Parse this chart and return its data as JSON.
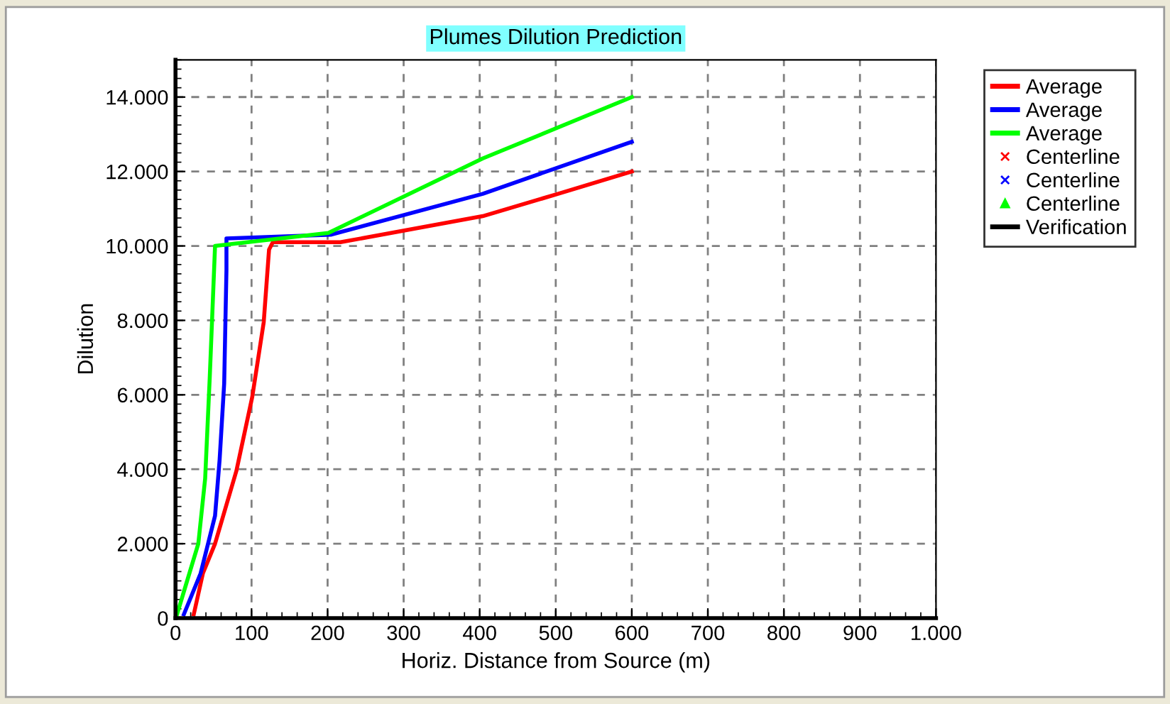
{
  "chart_data": {
    "type": "line",
    "title": "Plumes Dilution Prediction",
    "xlabel": "Horiz. Distance from Source (m)",
    "ylabel": "Dilution",
    "xlim": [
      0,
      1000
    ],
    "ylim": [
      0,
      15000
    ],
    "xticks": [
      0,
      100,
      200,
      300,
      400,
      500,
      600,
      700,
      800,
      900,
      {
        "value": 1000,
        "label": "1.000"
      }
    ],
    "yticks": [
      0,
      {
        "value": 2000,
        "label": "2.000"
      },
      {
        "value": 4000,
        "label": "4.000"
      },
      {
        "value": 6000,
        "label": "6.000"
      },
      {
        "value": 8000,
        "label": "8.000"
      },
      {
        "value": 10000,
        "label": "10.000"
      },
      {
        "value": 12000,
        "label": "12.000"
      },
      {
        "value": 14000,
        "label": "14.000"
      }
    ],
    "grid": true,
    "legend": "right",
    "line_style": "solid",
    "series": [
      {
        "name": "Average",
        "color": "#ff0000",
        "x": [
          24,
          36,
          52,
          80,
          101,
          116,
          123,
          128,
          217,
          404,
          503,
          600
        ],
        "values": [
          100,
          1200,
          2000,
          3950,
          5950,
          7950,
          9900,
          10100,
          10100,
          10800,
          11400,
          12000
        ]
      },
      {
        "name": "Average",
        "color": "#0000ff",
        "x": [
          11,
          33,
          52,
          58,
          64,
          67,
          67,
          204,
          404,
          600
        ],
        "values": [
          100,
          1200,
          2750,
          4250,
          6300,
          9350,
          10200,
          10300,
          11400,
          12800
        ]
      },
      {
        "name": "Average",
        "color": "#00ff00",
        "x": [
          2,
          30,
          39,
          45,
          52,
          201,
          404,
          600
        ],
        "values": [
          100,
          2000,
          3750,
          6450,
          10000,
          10350,
          12350,
          14000
        ]
      },
      {
        "name": "Centerline",
        "color": "#ff0000",
        "type": "scatter",
        "marker": "cross"
      },
      {
        "name": "Centerline",
        "color": "#0000ff",
        "type": "scatter",
        "marker": "cross"
      },
      {
        "name": "Centerline",
        "color": "#00ff00",
        "type": "scatter",
        "marker": "triangle"
      },
      {
        "name": "Verification",
        "color": "#000000"
      }
    ]
  }
}
